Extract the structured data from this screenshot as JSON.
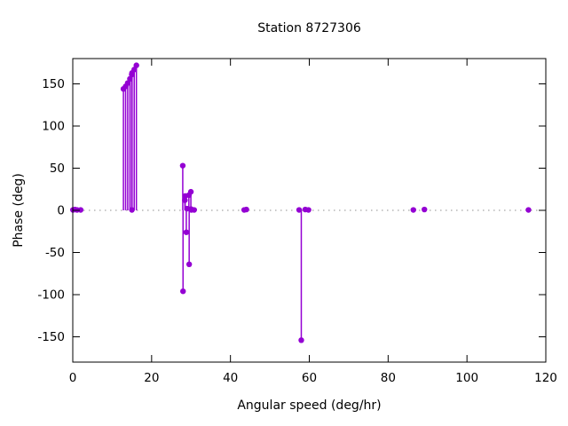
{
  "title": "Station 8727306",
  "chart_data": {
    "type": "scatter",
    "style": "impulses+points",
    "title": "Station 8727306",
    "xlabel": "Angular speed (deg/hr)",
    "ylabel": "Phase (deg)",
    "xlim": [
      0,
      120
    ],
    "ylim": [
      -180,
      180
    ],
    "xticks": [
      0,
      20,
      40,
      60,
      80,
      100,
      120
    ],
    "yticks": [
      -150,
      -100,
      -50,
      0,
      50,
      100,
      150
    ],
    "zero_line": true,
    "grid": false,
    "legend": "none",
    "marker_color": "#9400d3",
    "zero_line_color": "#909090",
    "axis_color": "#000000",
    "points": [
      [
        0.04,
        0.5
      ],
      [
        0.54,
        1.0
      ],
      [
        1.1,
        0.5
      ],
      [
        2.0,
        0.5
      ],
      [
        12.85,
        144
      ],
      [
        13.4,
        147
      ],
      [
        13.94,
        151
      ],
      [
        14.5,
        156
      ],
      [
        14.96,
        161
      ],
      [
        15.04,
        163
      ],
      [
        15.59,
        167
      ],
      [
        16.14,
        172
      ],
      [
        15.0,
        0.5
      ],
      [
        27.9,
        53
      ],
      [
        27.97,
        -96
      ],
      [
        28.44,
        12
      ],
      [
        28.51,
        17
      ],
      [
        28.8,
        -26
      ],
      [
        28.98,
        2
      ],
      [
        29.45,
        18
      ],
      [
        29.53,
        -64
      ],
      [
        29.96,
        22
      ],
      [
        30.0,
        1.5
      ],
      [
        30.08,
        0.5
      ],
      [
        30.8,
        0.5
      ],
      [
        43.48,
        0.5
      ],
      [
        44.03,
        1.0
      ],
      [
        57.42,
        0.5
      ],
      [
        57.97,
        -154
      ],
      [
        58.98,
        1.0
      ],
      [
        59.8,
        0.5
      ],
      [
        86.4,
        0.5
      ],
      [
        89.2,
        1.0
      ],
      [
        115.6,
        0.5
      ]
    ]
  }
}
